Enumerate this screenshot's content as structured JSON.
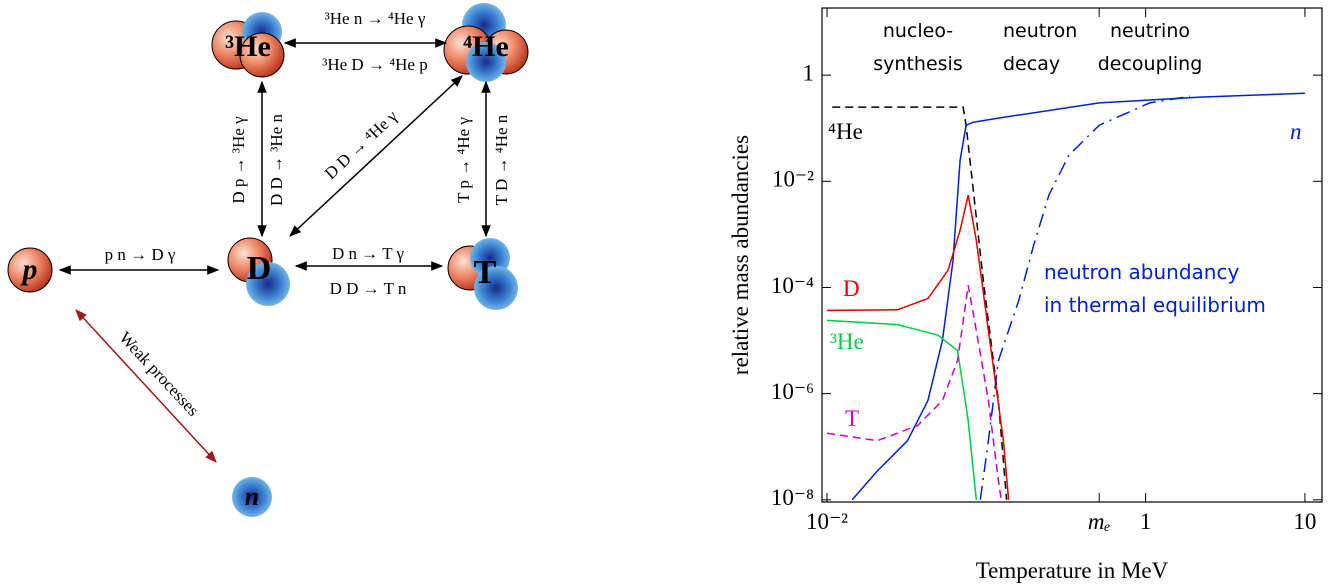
{
  "diagram": {
    "nodes": [
      {
        "label": "p"
      },
      {
        "label": "n"
      },
      {
        "label": "D"
      },
      {
        "label": "T"
      },
      {
        "label": "³He"
      },
      {
        "label": "⁴He"
      }
    ],
    "edges": [
      {
        "labels": [
          "p n → D γ"
        ]
      },
      {
        "labels": [
          "D n → T γ",
          "D D → T n"
        ]
      },
      {
        "labels": [
          "D p → ³He γ",
          "D D → ³He n"
        ]
      },
      {
        "labels": [
          "³He n → ⁴He γ",
          "³He D → ⁴He p"
        ]
      },
      {
        "labels": [
          "T p → ⁴He γ",
          "T D → ⁴He n"
        ]
      },
      {
        "labels": [
          "D D → ⁴He γ"
        ]
      },
      {
        "labels": [
          "Weak processes"
        ]
      }
    ]
  },
  "chart_data": {
    "type": "line",
    "xlabel": "Temperature in MeV",
    "ylabel": "relative mass abundancies",
    "xscale": "log",
    "yscale": "log",
    "xlim": [
      0.0093,
      12.8
    ],
    "ylim": [
      9.1e-09,
      18.4
    ],
    "xticks": [
      {
        "value": 0.01,
        "label": "10⁻²"
      },
      {
        "value": 0.511,
        "label": "mₑ"
      },
      1,
      10
    ],
    "yticks": [
      {
        "value": 1e-08,
        "label": "10⁻⁸"
      },
      {
        "value": 1e-06,
        "label": "10⁻⁶"
      },
      {
        "value": 0.0001,
        "label": "10⁻⁴"
      },
      {
        "value": 0.01,
        "label": "10⁻²"
      },
      1
    ],
    "annotations": [
      "nucleo-\nsynthesis",
      "neutron\ndecay",
      "neutrino\ndecoupling"
    ],
    "series": [
      {
        "name": "⁴He",
        "color": "#000000",
        "style": "dashed",
        "x": [
          0.0108,
          0.0715,
          0.0747,
          0.0828,
          0.0957,
          0.119,
          0.134
        ],
        "values": [
          0.25,
          0.25,
          0.114,
          0.0068,
          0.000135,
          7.4e-07,
          1e-08
        ]
      },
      {
        "name": "n",
        "color": "#0022cc",
        "style": "solid",
        "x": [
          0.0144,
          0.0207,
          0.032,
          0.043,
          0.053,
          0.0618,
          0.0685,
          0.0747,
          0.0828,
          0.119,
          0.512,
          2.2,
          10
        ],
        "values": [
          1e-08,
          3.5e-08,
          1.3e-07,
          7.4e-07,
          1e-05,
          0.00032,
          0.025,
          0.114,
          0.13,
          0.155,
          0.3,
          0.385,
          0.457
        ]
      },
      {
        "name": "D",
        "color": "#dd0000",
        "style": "solid",
        "x": [
          0.01,
          0.0277,
          0.043,
          0.0575,
          0.0685,
          0.077,
          0.0865,
          0.103,
          0.128,
          0.138
        ],
        "values": [
          3.7e-05,
          3.8e-05,
          6.2e-05,
          0.00021,
          0.0012,
          0.0055,
          0.00077,
          1.55e-05,
          1.3e-07,
          1e-08
        ]
      },
      {
        "name": "³He",
        "color": "#00cc44",
        "style": "solid",
        "x": [
          0.01,
          0.0277,
          0.0497,
          0.066,
          0.077,
          0.0865
        ],
        "values": [
          2.4e-05,
          2e-05,
          1.26e-05,
          6.5e-06,
          3.1e-07,
          1e-08
        ]
      },
      {
        "name": "T",
        "color": "#cc00cc",
        "style": "dashed",
        "x": [
          0.01,
          0.0207,
          0.037,
          0.053,
          0.066,
          0.077,
          0.0865,
          0.103,
          0.119,
          0.124
        ],
        "values": [
          1.8e-07,
          1.3e-07,
          2.5e-07,
          7.4e-07,
          4.2e-06,
          0.00011,
          1.55e-05,
          7.4e-07,
          2.3e-08,
          1e-08
        ]
      },
      {
        "name": "neutron abundancy\nin thermal equilibrium",
        "color": "#0022cc",
        "style": "dash-dot",
        "x": [
          0.0916,
          0.103,
          0.119,
          0.16,
          0.198,
          0.247,
          0.33,
          0.512,
          1.06,
          1.9
        ],
        "values": [
          1e-08,
          1.3e-07,
          4.2e-06,
          5.7e-05,
          0.00062,
          0.0055,
          0.031,
          0.114,
          0.3,
          0.4
        ]
      }
    ]
  }
}
